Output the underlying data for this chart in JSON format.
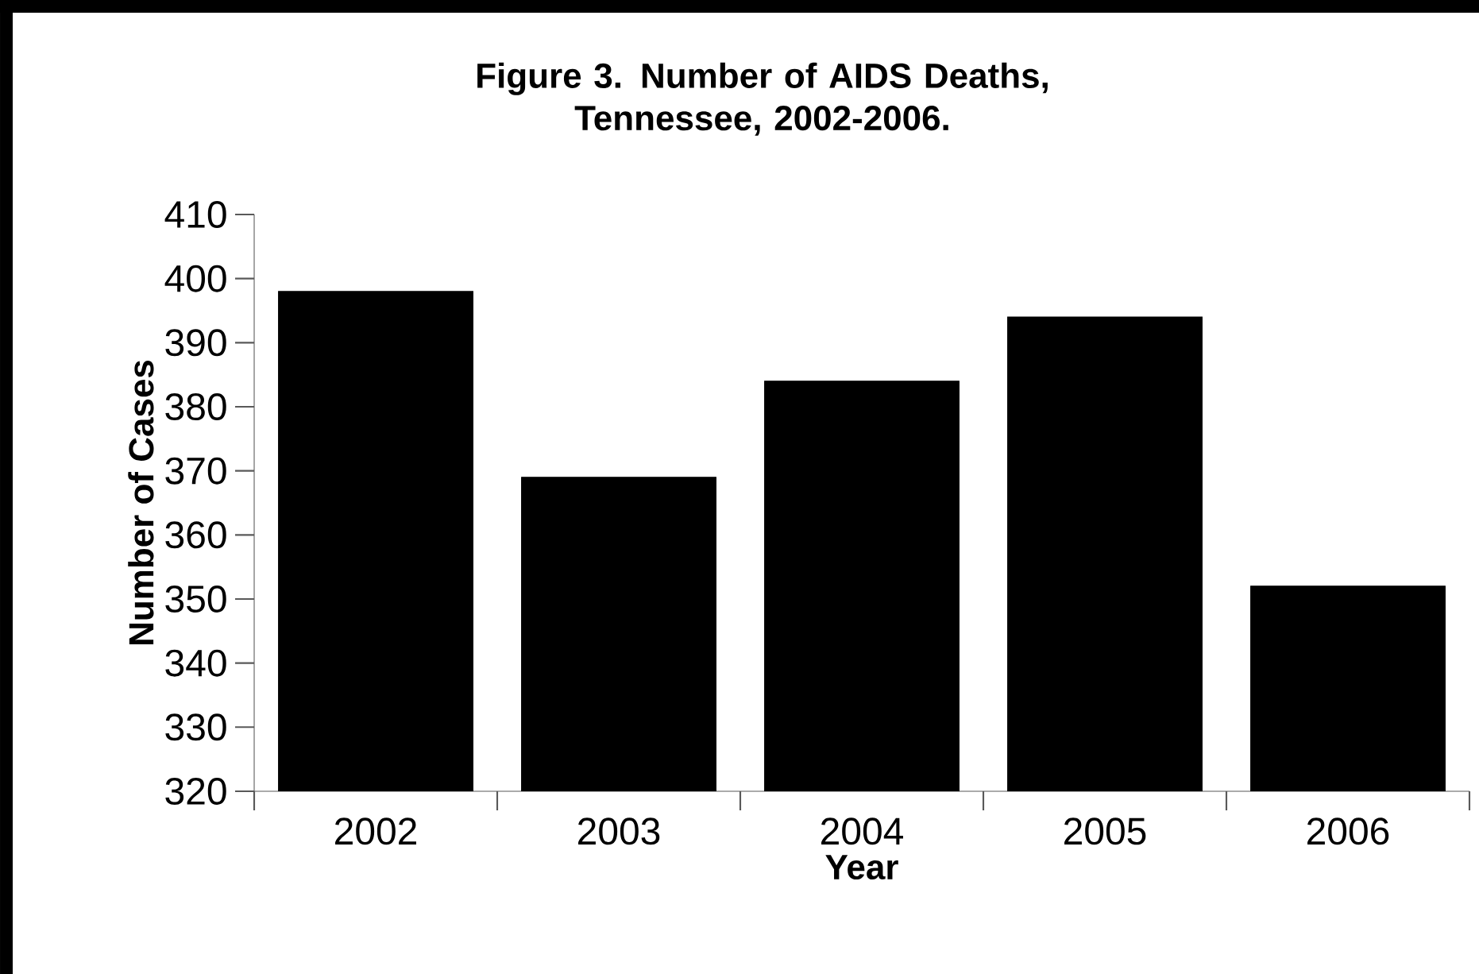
{
  "chart_data": {
    "type": "bar",
    "title": "Figure 3. Number of AIDS Deaths,\nTennessee, 2002-2006.",
    "xlabel": "Year",
    "ylabel": "Number of Cases",
    "categories": [
      "2002",
      "2003",
      "2004",
      "2005",
      "2006"
    ],
    "values": [
      398,
      369,
      384,
      394,
      352
    ],
    "color": "#000000",
    "ylim": [
      320,
      410
    ],
    "yticks": [
      320,
      330,
      340,
      350,
      360,
      370,
      380,
      390,
      400,
      410
    ],
    "grid": false
  }
}
